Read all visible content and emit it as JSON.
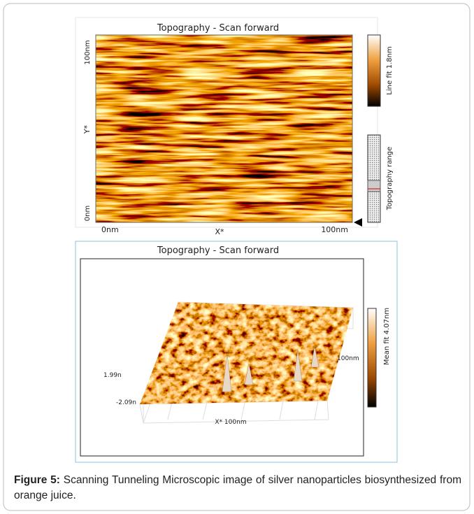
{
  "figure": {
    "top_panel": {
      "title": "Topography - Scan forward",
      "y_axis": {
        "max": "100nm",
        "label": "Y*",
        "min": "0nm"
      },
      "x_axis": {
        "min": "0nm",
        "label": "X*",
        "max": "100nm"
      },
      "colorbar_label": "Line fit 1.8nm",
      "range_label": "Topography range"
    },
    "bottom_panel": {
      "title": "Topography - Scan forward",
      "z_max": "1.99n",
      "z_min": "-2.09n",
      "y_label": "100nm",
      "x_label": "X* 100nm",
      "colorbar_label": "Mean fit 4.07nm"
    }
  },
  "caption": {
    "label": "Figure 5:",
    "text": "Scanning Tunneling Microscopic image of silver nanoparticles biosynthesized from orange juice."
  }
}
